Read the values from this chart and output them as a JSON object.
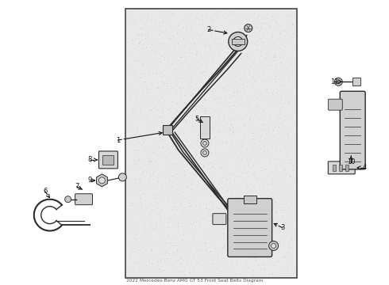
{
  "title": "2022 Mercedes-Benz AMG GT 53 Front Seat Belts Diagram",
  "bg_color": "#ffffff",
  "panel_bg": "#e4e4e4",
  "panel_border": "#555555",
  "lc": "#2a2a2a",
  "fig_w": 4.9,
  "fig_h": 3.6,
  "dpi": 100
}
